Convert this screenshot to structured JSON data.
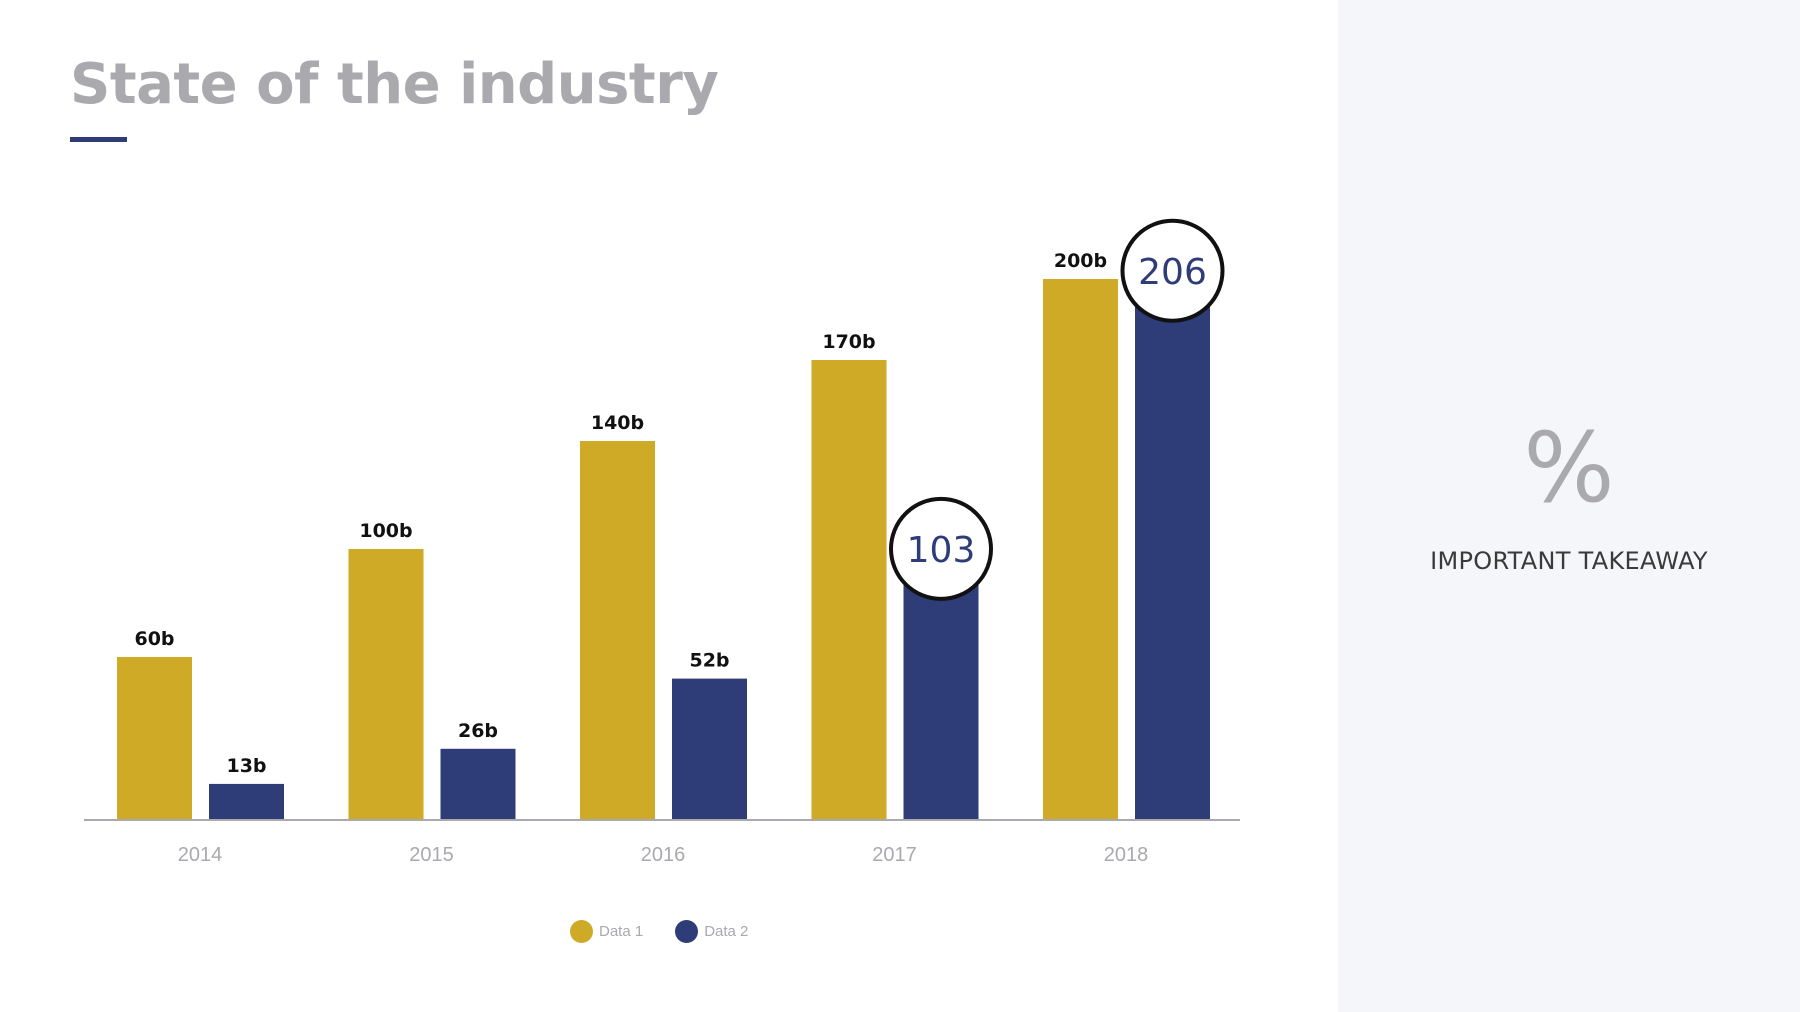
{
  "slide": {
    "title": "State of the industry",
    "accent_color": "#2e3c78",
    "panel_color": "#f5f6fa"
  },
  "takeaway": {
    "symbol": "%",
    "text": "IMPORTANT TAKEAWAY"
  },
  "legend": {
    "items": [
      {
        "label": "Data 1",
        "color": "#cfaa26"
      },
      {
        "label": "Data 2",
        "color": "#2e3c78"
      }
    ]
  },
  "chart_data": {
    "type": "bar",
    "title": "",
    "xlabel": "",
    "ylabel": "",
    "categories": [
      "2014",
      "2015",
      "2016",
      "2017",
      "2018"
    ],
    "ylim": [
      0,
      220
    ],
    "grid": false,
    "legend_position": "bottom-center",
    "series": [
      {
        "name": "Data 1",
        "color": "#cfaa26",
        "values": [
          60,
          100,
          140,
          170,
          200
        ],
        "labels": [
          "60b",
          "100b",
          "140b",
          "170b",
          "200b"
        ]
      },
      {
        "name": "Data 2",
        "color": "#2e3c78",
        "values": [
          13,
          26,
          52,
          103,
          206
        ],
        "labels": [
          "13b",
          "26b",
          "52b",
          "103",
          "206"
        ]
      }
    ],
    "callouts": [
      {
        "series": 1,
        "category": "2017",
        "text": "103"
      },
      {
        "series": 1,
        "category": "2018",
        "text": "206"
      }
    ]
  }
}
